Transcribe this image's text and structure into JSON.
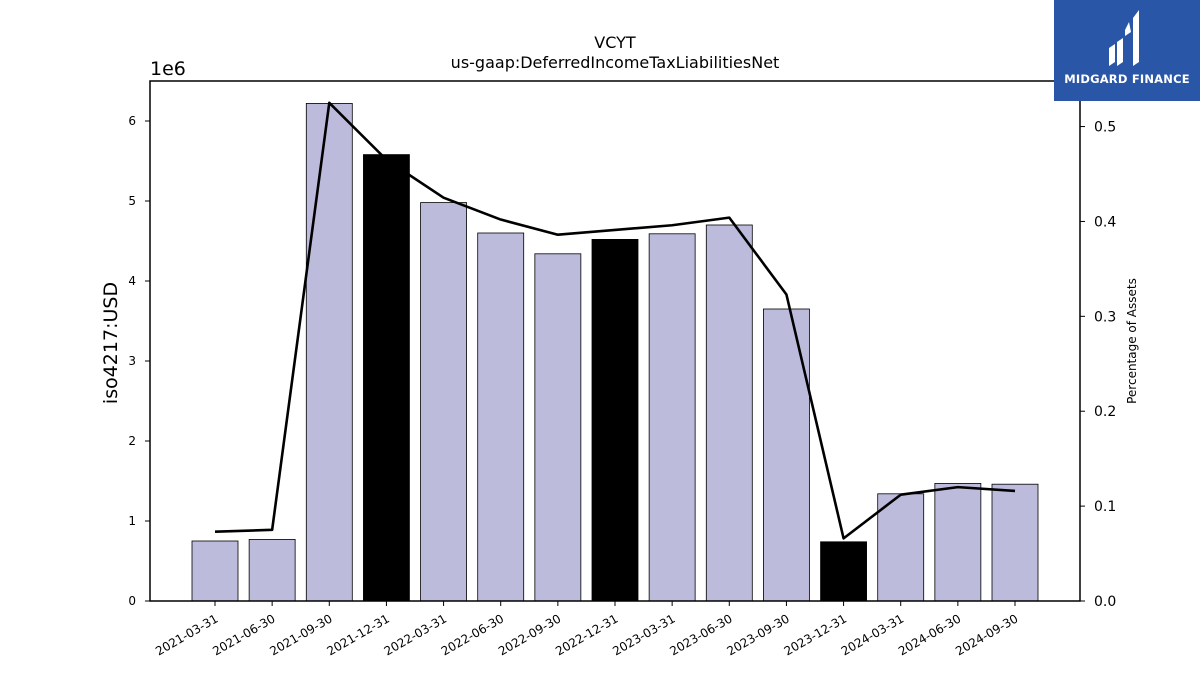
{
  "brand": {
    "name": "MIDGARD FINANCE",
    "logo_icon": "midgard-logo-icon",
    "color": "#2a56a8"
  },
  "chart_data": {
    "type": "bar",
    "title": "VCYT",
    "subtitle": "us-gaap:DeferredIncomeTaxLiabilitiesNet",
    "ylabel": "iso4217:USD",
    "ylabel_right": "Percentage of Assets",
    "y_multiplier_label": "1e6",
    "ylim": [
      0,
      6500000
    ],
    "ylim_right": [
      0,
      0.548
    ],
    "yticks": [
      0,
      1,
      2,
      3,
      4,
      5,
      6
    ],
    "yticks_right": [
      "0.0",
      "0.1",
      "0.2",
      "0.3",
      "0.4",
      "0.5"
    ],
    "categories": [
      "2021-03-31",
      "2021-06-30",
      "2021-09-30",
      "2021-12-31",
      "2022-03-31",
      "2022-06-30",
      "2022-09-30",
      "2022-12-31",
      "2023-03-31",
      "2023-06-30",
      "2023-09-30",
      "2023-12-31",
      "2024-03-31",
      "2024-06-30",
      "2024-09-30"
    ],
    "values": [
      750000,
      770000,
      6220000,
      5580000,
      4980000,
      4600000,
      4340000,
      4520000,
      4590000,
      4700000,
      3650000,
      740000,
      1340000,
      1470000,
      1460000
    ],
    "highlight": [
      false,
      false,
      false,
      true,
      false,
      false,
      false,
      true,
      false,
      false,
      false,
      true,
      false,
      false,
      false
    ],
    "bar_color": "#bdbbdb",
    "highlight_color": "#000000",
    "line_series": {
      "axis": "right",
      "values": [
        0.073,
        0.075,
        0.525,
        0.465,
        0.425,
        0.402,
        0.386,
        0.391,
        0.396,
        0.404,
        0.323,
        0.066,
        0.112,
        0.12,
        0.116
      ],
      "color": "#000000"
    },
    "grid": false,
    "legend": "none"
  }
}
